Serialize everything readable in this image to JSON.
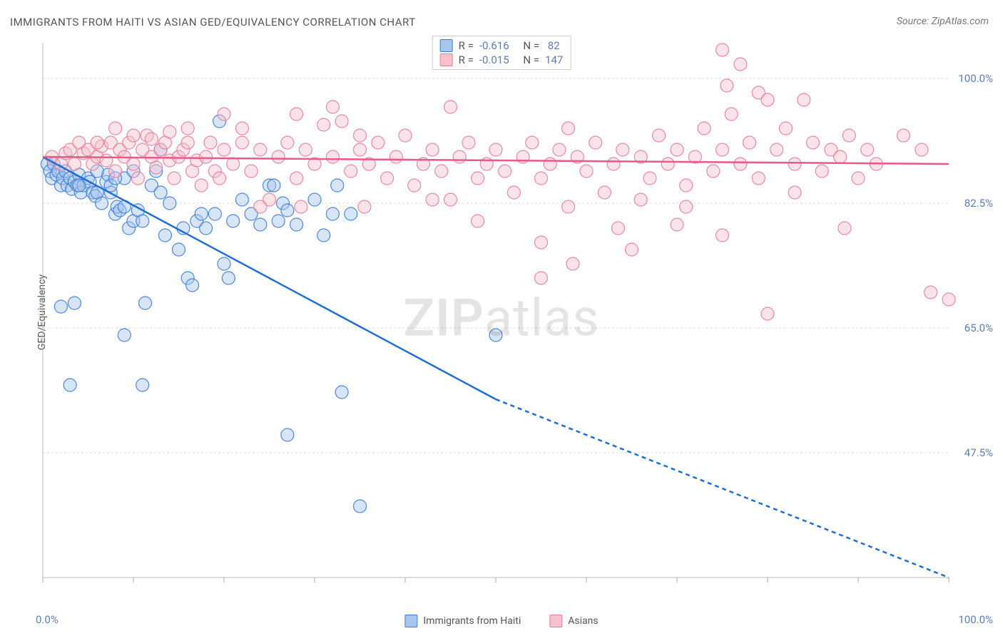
{
  "title": "IMMIGRANTS FROM HAITI VS ASIAN GED/EQUIVALENCY CORRELATION CHART",
  "source_label": "Source:",
  "source_name": "ZipAtlas.com",
  "ylabel": "GED/Equivalency",
  "watermark_zip": "ZIP",
  "watermark_atlas": "atlas",
  "chart": {
    "type": "scatter",
    "background_color": "#ffffff",
    "grid_color": "#d8d8d8",
    "axis_color": "#bbbbbb",
    "tick_color": "#aaaaaa",
    "xlim": [
      0,
      100
    ],
    "ylim": [
      30,
      105
    ],
    "x_origin_label": "0.0%",
    "x_max_label": "100.0%",
    "y_ticks": [
      47.5,
      65.0,
      82.5,
      100.0
    ],
    "y_tick_labels": [
      "47.5%",
      "65.0%",
      "82.5%",
      "100.0%"
    ],
    "x_minor_ticks": [
      0,
      10,
      20,
      30,
      40,
      50,
      60,
      70,
      80,
      90,
      100
    ],
    "marker_radius": 9,
    "marker_opacity": 0.45,
    "trend_line_width": 2.5
  },
  "series": [
    {
      "name": "Immigrants from Haiti",
      "fill_color": "#a7c6ed",
      "stroke_color": "#3b7dd8",
      "trend_color": "#1f6fd1",
      "R": "-0.616",
      "N": "82",
      "trend": {
        "x1": 0,
        "y1": 89,
        "x2_solid": 50,
        "y2_solid": 55,
        "x2_dash": 100,
        "y2_dash": 30
      },
      "points": [
        [
          0.5,
          88
        ],
        [
          0.8,
          87
        ],
        [
          1,
          86
        ],
        [
          1.2,
          88
        ],
        [
          1.5,
          86.5
        ],
        [
          1.7,
          87
        ],
        [
          2,
          85
        ],
        [
          2.2,
          86
        ],
        [
          2.5,
          87
        ],
        [
          2.7,
          85
        ],
        [
          3,
          86
        ],
        [
          3.2,
          84.5
        ],
        [
          3.5,
          85.5
        ],
        [
          3.8,
          85
        ],
        [
          4,
          86.5
        ],
        [
          4.2,
          84
        ],
        [
          4.5,
          85
        ],
        [
          5,
          86
        ],
        [
          5.2,
          85.5
        ],
        [
          5.5,
          84
        ],
        [
          5.8,
          83.5
        ],
        [
          6,
          84
        ],
        [
          6.5,
          82.5
        ],
        [
          7,
          85.5
        ],
        [
          7.2,
          86.5
        ],
        [
          7.5,
          84
        ],
        [
          8,
          81
        ],
        [
          8.2,
          82
        ],
        [
          8.5,
          81.5
        ],
        [
          9,
          82
        ],
        [
          9.5,
          79
        ],
        [
          10,
          80
        ],
        [
          10.5,
          81.5
        ],
        [
          11,
          80
        ],
        [
          11.3,
          68.5
        ],
        [
          12,
          85
        ],
        [
          12.5,
          87
        ],
        [
          13,
          84
        ],
        [
          13,
          90
        ],
        [
          13.5,
          78
        ],
        [
          14,
          82.5
        ],
        [
          15,
          76
        ],
        [
          15.5,
          79
        ],
        [
          16,
          72
        ],
        [
          16.5,
          71
        ],
        [
          17,
          80
        ],
        [
          17.5,
          81
        ],
        [
          18,
          79
        ],
        [
          19,
          81
        ],
        [
          2,
          68
        ],
        [
          3.5,
          68.5
        ],
        [
          19.5,
          94
        ],
        [
          20,
          74
        ],
        [
          20.5,
          72
        ],
        [
          21,
          80
        ],
        [
          9,
          64
        ],
        [
          11,
          57
        ],
        [
          3,
          57
        ],
        [
          22,
          83
        ],
        [
          23,
          81
        ],
        [
          24,
          79.5
        ],
        [
          25,
          85
        ],
        [
          25.5,
          85
        ],
        [
          26,
          80
        ],
        [
          26.5,
          82.5
        ],
        [
          27,
          81.5
        ],
        [
          28,
          79.5
        ],
        [
          27,
          50
        ],
        [
          30,
          83
        ],
        [
          31,
          78
        ],
        [
          32,
          81
        ],
        [
          32.5,
          85
        ],
        [
          33,
          56
        ],
        [
          35,
          40
        ],
        [
          34,
          81
        ],
        [
          50,
          64
        ],
        [
          7.5,
          85
        ],
        [
          9,
          86
        ],
        [
          4,
          85
        ],
        [
          6,
          87
        ],
        [
          8,
          86
        ],
        [
          10,
          87
        ]
      ]
    },
    {
      "name": "Asians",
      "fill_color": "#f5c2ce",
      "stroke_color": "#e77d9a",
      "trend_color": "#e85a88",
      "R": "-0.015",
      "N": "147",
      "trend": {
        "x1": 0,
        "y1": 89,
        "x2_solid": 100,
        "y2_solid": 88,
        "x2_dash": 100,
        "y2_dash": 88
      },
      "points": [
        [
          1,
          89
        ],
        [
          2,
          88
        ],
        [
          2.5,
          89.5
        ],
        [
          3,
          90
        ],
        [
          3.5,
          88
        ],
        [
          4,
          91
        ],
        [
          4.5,
          89.5
        ],
        [
          5,
          90
        ],
        [
          5.5,
          88
        ],
        [
          6,
          89
        ],
        [
          6.5,
          90.5
        ],
        [
          7,
          88.5
        ],
        [
          7.5,
          91
        ],
        [
          8,
          87
        ],
        [
          8.5,
          90
        ],
        [
          9,
          89
        ],
        [
          9.5,
          91
        ],
        [
          10,
          88
        ],
        [
          10.5,
          86
        ],
        [
          11,
          90
        ],
        [
          11.5,
          92
        ],
        [
          12,
          89
        ],
        [
          12.5,
          87.5
        ],
        [
          13,
          90
        ],
        [
          13.5,
          91
        ],
        [
          14,
          88.5
        ],
        [
          14.5,
          86
        ],
        [
          15,
          89
        ],
        [
          15.5,
          90
        ],
        [
          16,
          93
        ],
        [
          16.5,
          87
        ],
        [
          17,
          88.5
        ],
        [
          17.5,
          85
        ],
        [
          18,
          89
        ],
        [
          18.5,
          91
        ],
        [
          19,
          87
        ],
        [
          19.5,
          86
        ],
        [
          20,
          90
        ],
        [
          21,
          88
        ],
        [
          22,
          91
        ],
        [
          23,
          87
        ],
        [
          24,
          90
        ],
        [
          25,
          83
        ],
        [
          26,
          89
        ],
        [
          27,
          91
        ],
        [
          28,
          86
        ],
        [
          28.5,
          82
        ],
        [
          29,
          90
        ],
        [
          30,
          88
        ],
        [
          31,
          93.5
        ],
        [
          32,
          89
        ],
        [
          33,
          94
        ],
        [
          34,
          87
        ],
        [
          35,
          90
        ],
        [
          35.5,
          82
        ],
        [
          36,
          88
        ],
        [
          37,
          91
        ],
        [
          38,
          86
        ],
        [
          39,
          89
        ],
        [
          40,
          92
        ],
        [
          41,
          85
        ],
        [
          42,
          88
        ],
        [
          43,
          90
        ],
        [
          44,
          87
        ],
        [
          45,
          83
        ],
        [
          46,
          89
        ],
        [
          47,
          91
        ],
        [
          48,
          86
        ],
        [
          49,
          88
        ],
        [
          50,
          90
        ],
        [
          51,
          87
        ],
        [
          52,
          84
        ],
        [
          53,
          89
        ],
        [
          54,
          91
        ],
        [
          55,
          86
        ],
        [
          56,
          88
        ],
        [
          57,
          90
        ],
        [
          58,
          82
        ],
        [
          58.5,
          74
        ],
        [
          59,
          89
        ],
        [
          60,
          87
        ],
        [
          61,
          91
        ],
        [
          62,
          84
        ],
        [
          63,
          88
        ],
        [
          64,
          90
        ],
        [
          65,
          76
        ],
        [
          66,
          89
        ],
        [
          67,
          86
        ],
        [
          68,
          92
        ],
        [
          69,
          88
        ],
        [
          70,
          90
        ],
        [
          71,
          85
        ],
        [
          72,
          89
        ],
        [
          73,
          93
        ],
        [
          74,
          87
        ],
        [
          75,
          90
        ],
        [
          75.5,
          99
        ],
        [
          76,
          95
        ],
        [
          77,
          88
        ],
        [
          78,
          91
        ],
        [
          79,
          86
        ],
        [
          80,
          67
        ],
        [
          81,
          90
        ],
        [
          82,
          93
        ],
        [
          83,
          88
        ],
        [
          84,
          97
        ],
        [
          85,
          91
        ],
        [
          86,
          87
        ],
        [
          87,
          90
        ],
        [
          88,
          89
        ],
        [
          88.5,
          79
        ],
        [
          89,
          92
        ],
        [
          90,
          86
        ],
        [
          91,
          90
        ],
        [
          92,
          88
        ],
        [
          75,
          104
        ],
        [
          75,
          78
        ],
        [
          45,
          96
        ],
        [
          32,
          96
        ],
        [
          28,
          95
        ],
        [
          63.5,
          79
        ],
        [
          55,
          77
        ],
        [
          70,
          79.5
        ],
        [
          58,
          93
        ],
        [
          77,
          102
        ],
        [
          79,
          98
        ],
        [
          80,
          97
        ],
        [
          55,
          72
        ],
        [
          35,
          92
        ],
        [
          24,
          82
        ],
        [
          43,
          83
        ],
        [
          48,
          80
        ],
        [
          66,
          83
        ],
        [
          71,
          82
        ],
        [
          83,
          84
        ],
        [
          95,
          92
        ],
        [
          97,
          90
        ],
        [
          98,
          70
        ],
        [
          100,
          69
        ],
        [
          20,
          95
        ],
        [
          22,
          93
        ],
        [
          16,
          91
        ],
        [
          14,
          92.5
        ],
        [
          12,
          91.5
        ],
        [
          10,
          92
        ],
        [
          8,
          93
        ],
        [
          6,
          91
        ]
      ]
    }
  ],
  "bottom_legend": [
    {
      "label": "Immigrants from Haiti",
      "fill": "#a7c6ed",
      "stroke": "#3b7dd8"
    },
    {
      "label": "Asians",
      "fill": "#f5c2ce",
      "stroke": "#e77d9a"
    }
  ]
}
